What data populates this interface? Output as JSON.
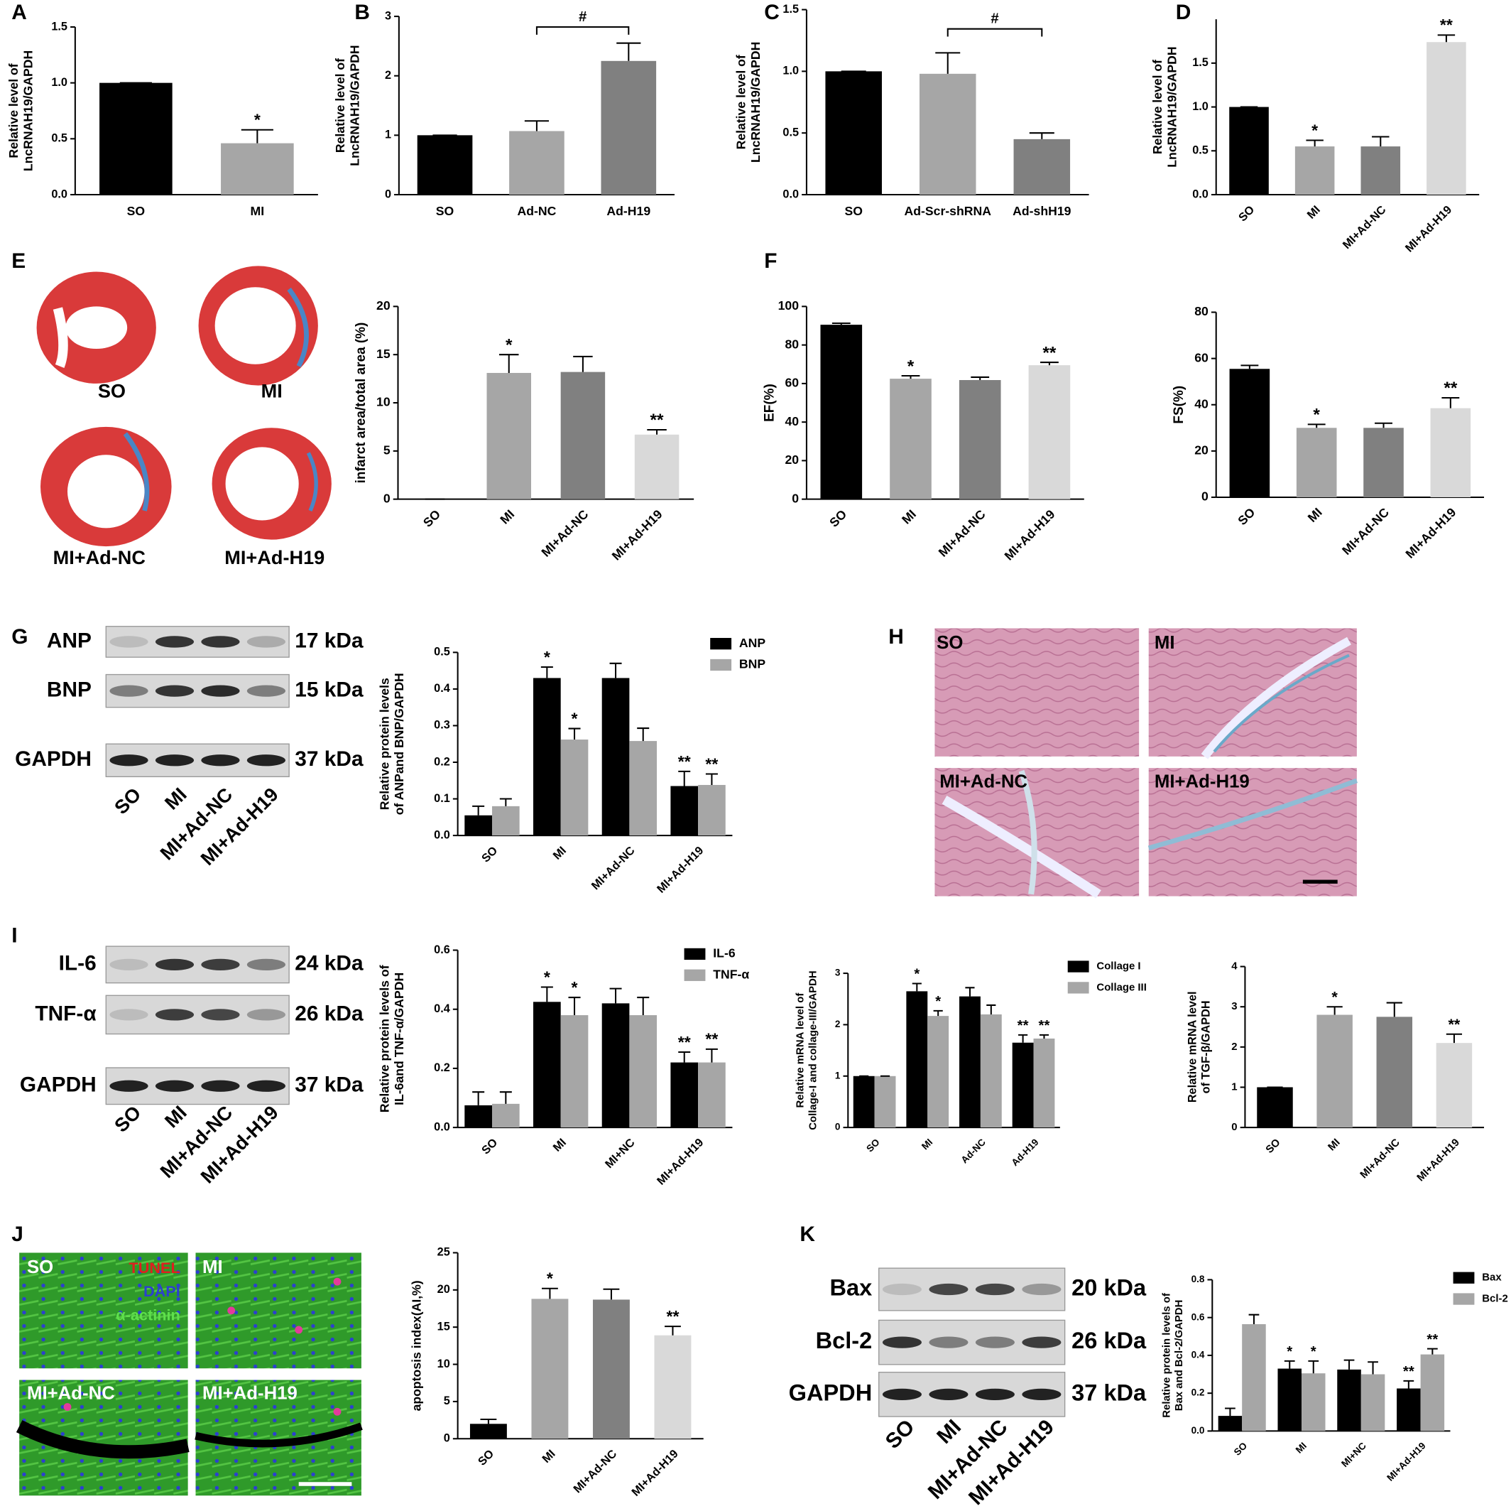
{
  "panel_labels": [
    "A",
    "B",
    "C",
    "D",
    "E",
    "F",
    "G",
    "H",
    "I",
    "J",
    "K"
  ],
  "heart_images": {
    "labels": [
      "SO",
      "MI",
      "MI+Ad-NC",
      "MI+Ad-H19"
    ]
  },
  "histology_images": {
    "labels": [
      "SO",
      "MI",
      "MI+Ad-NC",
      "MI+Ad-H19"
    ]
  },
  "tunel_images": {
    "labels": [
      "SO",
      "MI",
      "MI+Ad-NC",
      "MI+Ad-H19"
    ],
    "stains": [
      "TUNEL",
      "DAPI",
      "α-actinin"
    ]
  },
  "blots": [
    {
      "rows": [
        {
          "name": "ANP",
          "size": "17 kDa"
        },
        {
          "name": "BNP",
          "size": "15 kDa"
        },
        {
          "name": "GAPDH",
          "size": "37 kDa"
        }
      ],
      "lanes": [
        "SO",
        "MI",
        "MI+Ad-NC",
        "MI+Ad-H19"
      ]
    },
    {
      "rows": [
        {
          "name": "IL-6",
          "size": "24 kDa"
        },
        {
          "name": "TNF-α",
          "size": "26 kDa"
        },
        {
          "name": "GAPDH",
          "size": "37 kDa"
        }
      ],
      "lanes": [
        "SO",
        "MI",
        "MI+Ad-NC",
        "MI+Ad-H19"
      ]
    },
    {
      "rows": [
        {
          "name": "Bax",
          "size": "20 kDa"
        },
        {
          "name": "Bcl-2",
          "size": "26 kDa"
        },
        {
          "name": "GAPDH",
          "size": "37 kDa"
        }
      ],
      "lanes": [
        "SO",
        "MI",
        "MI+Ad-NC",
        "MI+Ad-H19"
      ]
    }
  ],
  "chart_data": [
    {
      "type": "bar",
      "ylabel": [
        "Relative level of",
        "LncRNAH19/GAPDH"
      ],
      "categories": [
        "SO",
        "MI"
      ],
      "values": [
        1.0,
        0.46
      ],
      "errors": [
        0,
        0.12
      ],
      "colors": [
        "#000000",
        "#a6a6a6"
      ],
      "markers": [
        null,
        "*"
      ],
      "ylim": [
        0,
        1.5
      ],
      "yticks": [
        {
          "value": 0,
          "label": "0.0"
        },
        0.5,
        {
          "value": 1,
          "label": "1.0"
        },
        1.5
      ]
    },
    {
      "type": "bar",
      "ylabel": [
        "Relative level of",
        "LncRNAH19/GAPDH"
      ],
      "categories": [
        "SO",
        "Ad-NC",
        "Ad-H19"
      ],
      "values": [
        1.0,
        1.07,
        2.25
      ],
      "errors": [
        0,
        0.17,
        0.3
      ],
      "colors": [
        "#000000",
        "#a6a6a6",
        "#808080"
      ],
      "annotation": "#",
      "ylim": [
        0,
        3
      ],
      "yticks": [
        0,
        1,
        2,
        3
      ]
    },
    {
      "type": "bar",
      "ylabel": [
        "Relative level of",
        "LncRNAH19/GAPDH"
      ],
      "categories": [
        "SO",
        "Ad-Scr-shRNA",
        "Ad-shH19"
      ],
      "values": [
        1.0,
        0.98,
        0.45
      ],
      "errors": [
        0,
        0.17,
        0.05
      ],
      "colors": [
        "#000000",
        "#a6a6a6",
        "#808080"
      ],
      "annotation": "#",
      "ylim": [
        0,
        1.5
      ],
      "yticks": [
        {
          "value": 0,
          "label": "0.0"
        },
        0.5,
        {
          "value": 1,
          "label": "1.0"
        },
        1.5
      ]
    },
    {
      "type": "bar",
      "ylabel": [
        "Relative level of",
        "LncRNAH19/GAPDH"
      ],
      "categories": [
        "SO",
        "MI",
        "MI+Ad-NC",
        "MI+Ad-H19"
      ],
      "values": [
        1.0,
        0.55,
        0.55,
        1.74
      ],
      "errors": [
        0,
        0.07,
        0.11,
        0.08
      ],
      "colors": [
        "#000000",
        "#a6a6a6",
        "#808080",
        "#d9d9d9"
      ],
      "markers": [
        null,
        "*",
        null,
        "**"
      ],
      "ylim": [
        0,
        2
      ],
      "yticks": [
        {
          "value": 0,
          "label": "0.0"
        },
        0.5,
        {
          "value": 1,
          "label": "1.0"
        },
        1.5
      ]
    },
    {
      "type": "bar",
      "ylabel": [
        "infarct area/total area (%)"
      ],
      "categories": [
        "SO",
        "MI",
        "MI+Ad-NC",
        "MI+Ad-H19"
      ],
      "values": [
        0,
        13.1,
        13.2,
        6.7
      ],
      "errors": [
        0,
        1.9,
        1.6,
        0.5
      ],
      "colors": [
        "#000000",
        "#a6a6a6",
        "#808080",
        "#d9d9d9"
      ],
      "markers": [
        null,
        "*",
        null,
        "**"
      ],
      "ylim": [
        0,
        20
      ],
      "yticks": [
        0,
        5,
        10,
        15,
        20
      ]
    },
    {
      "type": "bar",
      "ylabel": [
        "EF(%)"
      ],
      "categories": [
        "SO",
        "MI",
        "MI+Ad-NC",
        "MI+Ad-H19"
      ],
      "values": [
        90.5,
        62.5,
        61.8,
        69.5
      ],
      "errors": [
        0.8,
        1.5,
        1.5,
        1.5
      ],
      "colors": [
        "#000000",
        "#a6a6a6",
        "#808080",
        "#d9d9d9"
      ],
      "markers": [
        null,
        "*",
        null,
        "**"
      ],
      "ylim": [
        0,
        100
      ],
      "yticks": [
        0,
        20,
        40,
        60,
        80,
        100
      ]
    },
    {
      "type": "bar",
      "ylabel": [
        "FS(%)"
      ],
      "categories": [
        "SO",
        "MI",
        "MI+Ad-NC",
        "MI+Ad-H19"
      ],
      "values": [
        55.5,
        30,
        30,
        38.5
      ],
      "errors": [
        1.5,
        1.5,
        2,
        4.5
      ],
      "colors": [
        "#000000",
        "#a6a6a6",
        "#808080",
        "#d9d9d9"
      ],
      "markers": [
        null,
        "*",
        null,
        "**"
      ],
      "ylim": [
        0,
        80
      ],
      "yticks": [
        0,
        20,
        40,
        60,
        80
      ]
    },
    {
      "type": "bar",
      "ylabel": [
        "Relative protein levels",
        "of ANPand BNP/GAPDH"
      ],
      "categories": [
        "SO",
        "MI",
        "MI+Ad-NC",
        "MI+Ad-H19"
      ],
      "series": [
        {
          "name": "ANP",
          "color": "#000000",
          "values": [
            0.055,
            0.43,
            0.43,
            0.135
          ],
          "errors": [
            0.025,
            0.03,
            0.04,
            0.04
          ],
          "markers": [
            null,
            "*",
            null,
            "**"
          ]
        },
        {
          "name": "BNP",
          "color": "#a6a6a6",
          "values": [
            0.08,
            0.262,
            0.258,
            0.138
          ],
          "errors": [
            0.02,
            0.03,
            0.035,
            0.03
          ],
          "markers": [
            null,
            "*",
            null,
            "**"
          ]
        }
      ],
      "ylim": [
        0,
        0.5
      ],
      "yticks": [
        {
          "value": 0,
          "label": "0.0"
        },
        0.1,
        0.2,
        0.3,
        0.4,
        0.5
      ]
    },
    {
      "type": "bar",
      "ylabel": [
        "Relative protein levels of",
        "IL-6and TNF-α/GAPDH"
      ],
      "categories": [
        "SO",
        "MI",
        "MI+NC",
        "MI+Ad-H19"
      ],
      "series": [
        {
          "name": "IL-6",
          "color": "#000000",
          "values": [
            0.075,
            0.425,
            0.42,
            0.22
          ],
          "errors": [
            0.045,
            0.05,
            0.05,
            0.035
          ],
          "markers": [
            null,
            "*",
            null,
            "**"
          ]
        },
        {
          "name": "TNF-α",
          "color": "#a6a6a6",
          "values": [
            0.08,
            0.38,
            0.38,
            0.22
          ],
          "errors": [
            0.04,
            0.06,
            0.06,
            0.045
          ],
          "markers": [
            null,
            "*",
            null,
            "**"
          ]
        }
      ],
      "ylim": [
        0,
        0.6
      ],
      "yticks": [
        {
          "value": 0,
          "label": "0.0"
        },
        0.2,
        0.4,
        0.6
      ]
    },
    {
      "type": "bar",
      "ylabel": [
        "Relative mRNA level  of",
        "Collage-I and collage-III/GAPDH"
      ],
      "categories": [
        "SO",
        "MI",
        "Ad-NC",
        "Ad-H19"
      ],
      "series": [
        {
          "name": "Collage I",
          "color": "#000000",
          "values": [
            1.0,
            2.65,
            2.55,
            1.65
          ],
          "errors": [
            0,
            0.15,
            0.17,
            0.15
          ],
          "markers": [
            null,
            "*",
            null,
            "**"
          ]
        },
        {
          "name": "Collage III",
          "color": "#a6a6a6",
          "values": [
            1.0,
            2.17,
            2.2,
            1.73
          ],
          "errors": [
            0,
            0.1,
            0.18,
            0.07
          ],
          "markers": [
            null,
            "*",
            null,
            "**"
          ]
        }
      ],
      "ylim": [
        0,
        3
      ],
      "yticks": [
        0,
        1,
        2,
        3
      ]
    },
    {
      "type": "bar",
      "ylabel": [
        "Relative mRNA level",
        "of TGF-β/GAPDH"
      ],
      "categories": [
        "SO",
        "MI",
        "MI+Ad-NC",
        "MI+Ad-H19"
      ],
      "values": [
        1.0,
        2.8,
        2.75,
        2.1
      ],
      "errors": [
        0,
        0.2,
        0.35,
        0.22
      ],
      "colors": [
        "#000000",
        "#a6a6a6",
        "#808080",
        "#d9d9d9"
      ],
      "markers": [
        null,
        "*",
        null,
        "**"
      ],
      "ylim": [
        0,
        4
      ],
      "yticks": [
        0,
        1,
        2,
        3,
        4
      ]
    },
    {
      "type": "bar",
      "ylabel": [
        "apoptosis index(AI,%)"
      ],
      "categories": [
        "SO",
        "MI",
        "MI+Ad-NC",
        "MI+Ad-H19"
      ],
      "values": [
        2,
        18.8,
        18.7,
        13.9
      ],
      "errors": [
        0.6,
        1.4,
        1.4,
        1.2
      ],
      "colors": [
        "#000000",
        "#a6a6a6",
        "#808080",
        "#d9d9d9"
      ],
      "markers": [
        null,
        "*",
        null,
        "**"
      ],
      "ylim": [
        0,
        25
      ],
      "yticks": [
        0,
        5,
        10,
        15,
        20,
        25
      ]
    },
    {
      "type": "bar",
      "ylabel": [
        "Relative protein levels of",
        "Bax and Bcl-2/GAPDH"
      ],
      "categories": [
        "SO",
        "MI",
        "MI+NC",
        "MI+Ad-H19"
      ],
      "series": [
        {
          "name": "Bax",
          "color": "#000000",
          "values": [
            0.08,
            0.33,
            0.325,
            0.225
          ],
          "errors": [
            0.04,
            0.04,
            0.05,
            0.04
          ],
          "markers": [
            null,
            "*",
            null,
            "**"
          ]
        },
        {
          "name": "Bcl-2",
          "color": "#a6a6a6",
          "values": [
            0.565,
            0.305,
            0.3,
            0.405
          ],
          "errors": [
            0.05,
            0.065,
            0.065,
            0.03
          ],
          "markers": [
            null,
            "*",
            null,
            "**"
          ]
        }
      ],
      "ylim": [
        0,
        0.8
      ],
      "yticks": [
        {
          "value": 0,
          "label": "0.0"
        },
        0.2,
        0.4,
        0.6,
        0.8
      ]
    }
  ]
}
